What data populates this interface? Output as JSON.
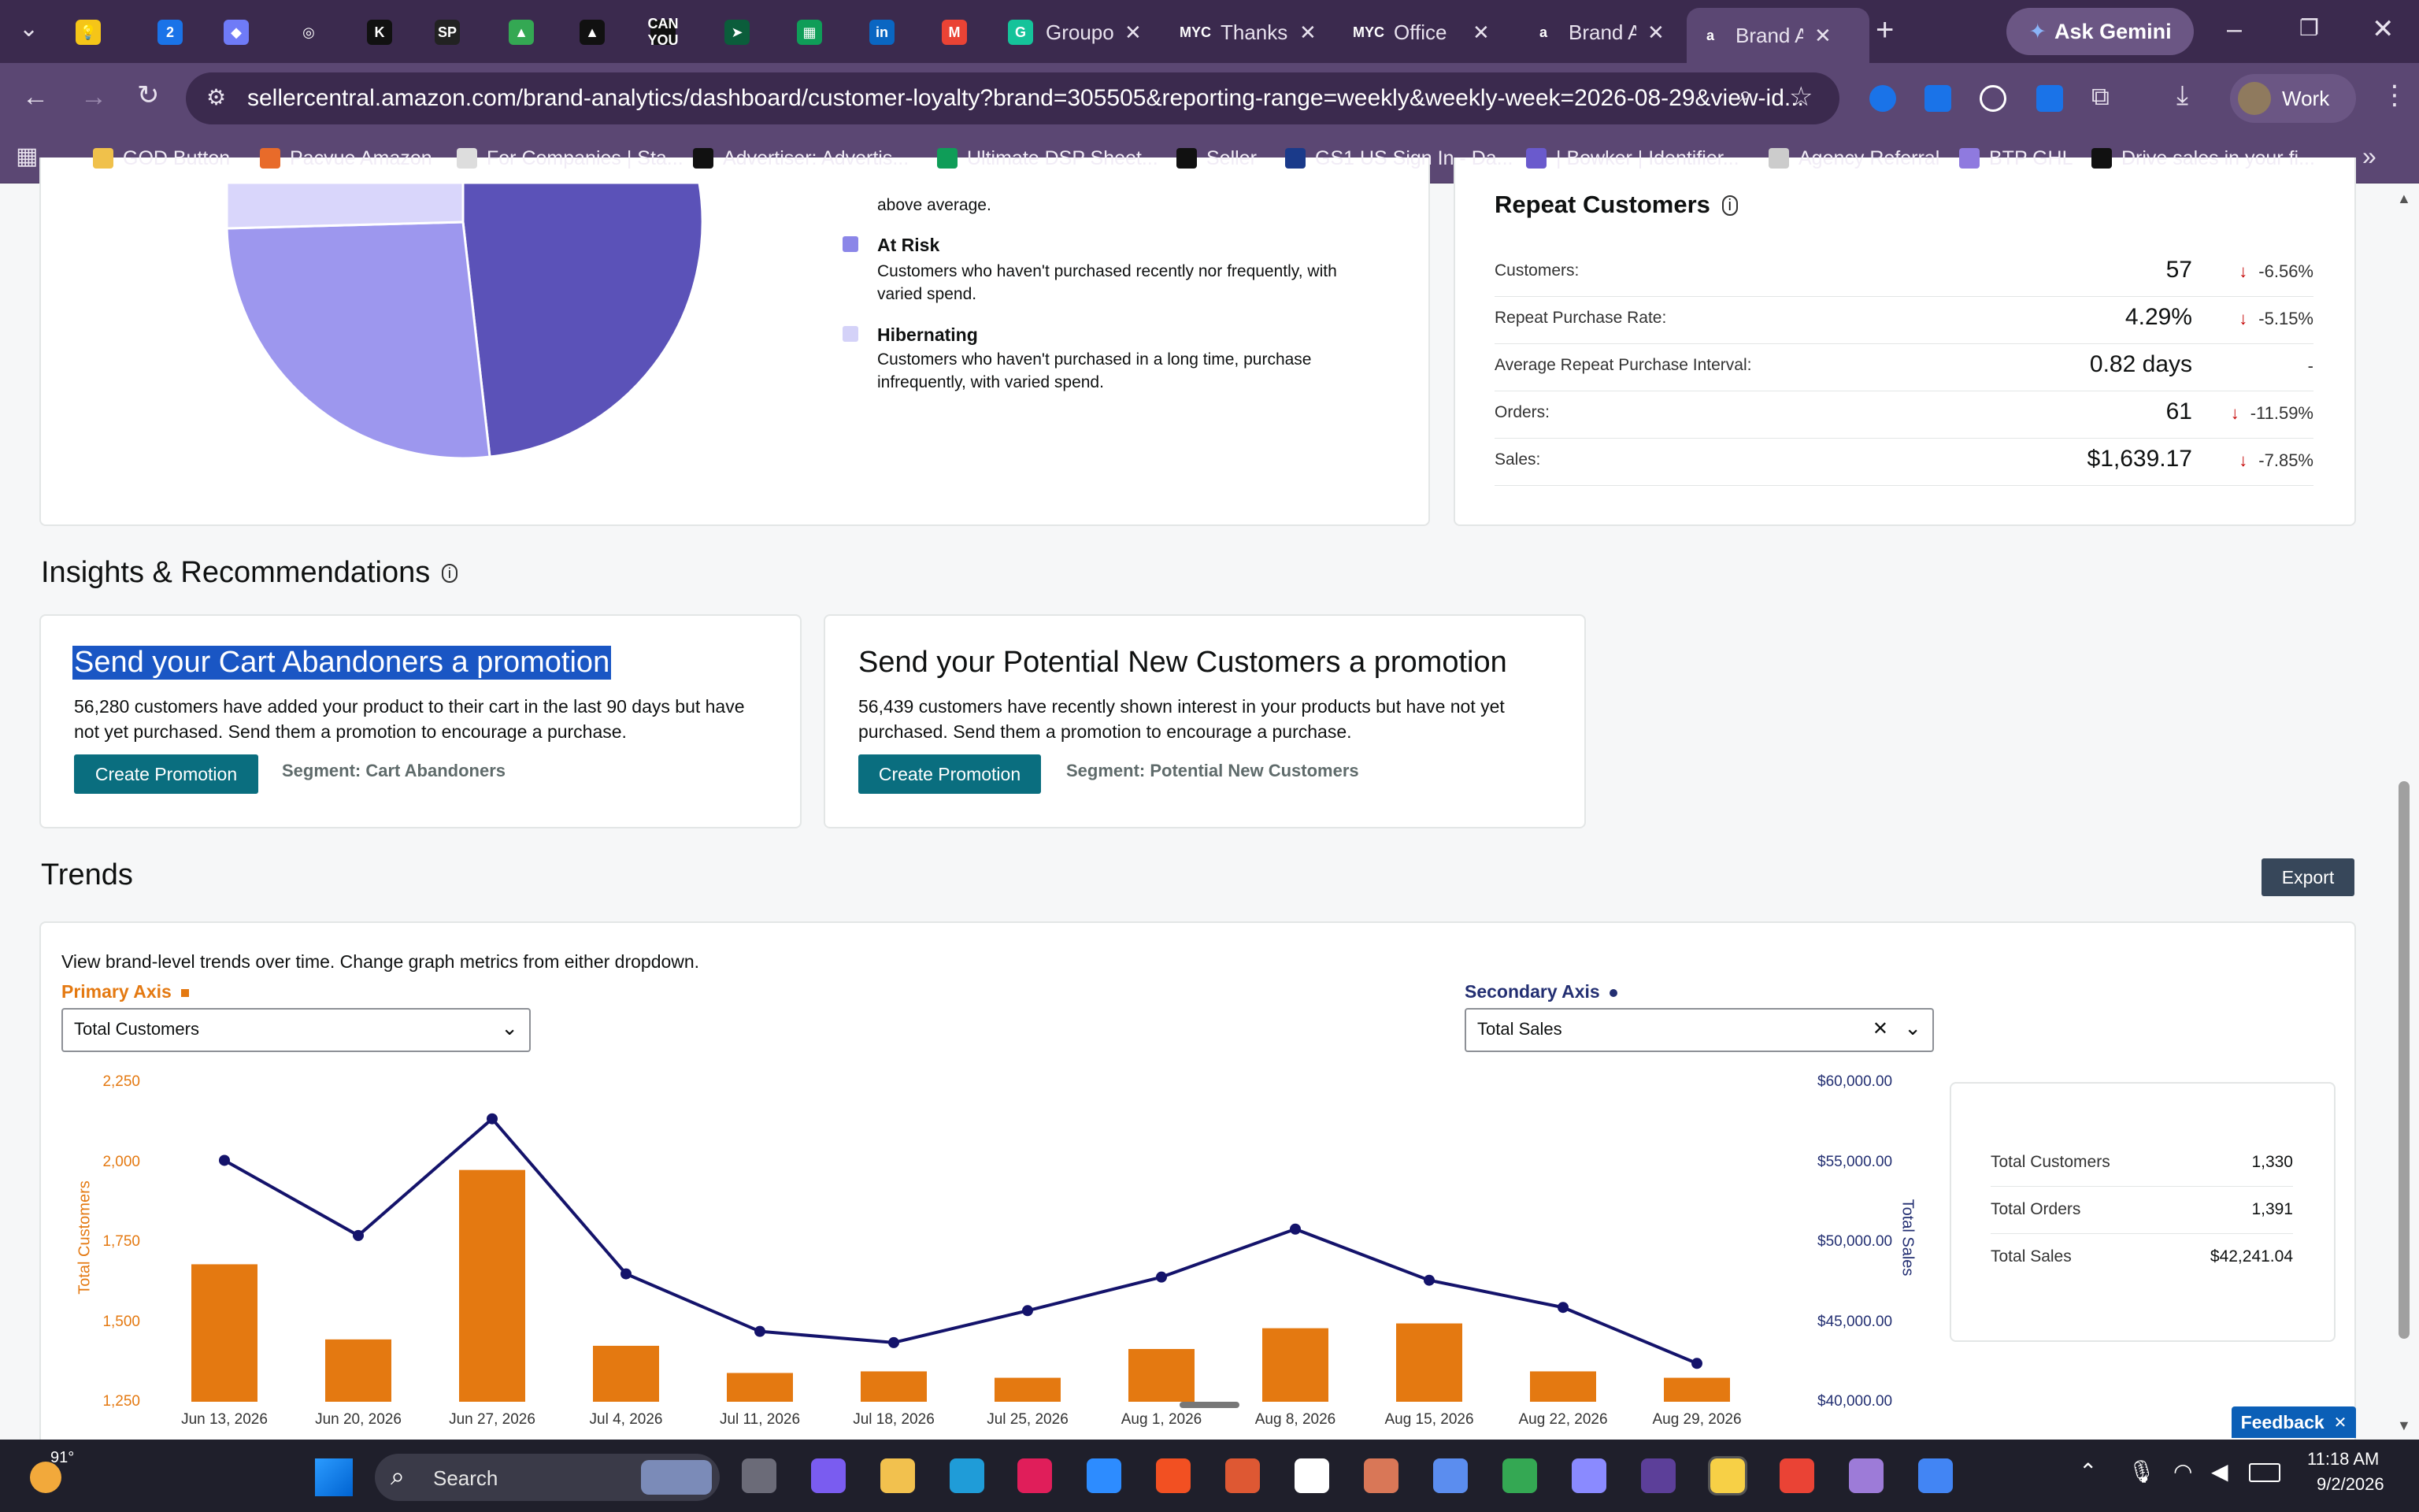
{
  "browser": {
    "tabs": [
      {
        "favicon": "bulb-icon",
        "title": "",
        "color": "#f5c518"
      },
      {
        "favicon": "2",
        "title": "",
        "color": "#1a73e8"
      },
      {
        "favicon": "diamond-icon",
        "title": "",
        "color": "#6f7bf7"
      },
      {
        "favicon": "clickup-icon",
        "title": "",
        "color": "#ffffff"
      },
      {
        "favicon": "K",
        "title": "",
        "color": "#111111"
      },
      {
        "favicon": "SP",
        "title": "",
        "color": "#222222"
      },
      {
        "favicon": "drive-icon",
        "title": "",
        "color": "#34a853"
      },
      {
        "favicon": "triangle-icon",
        "title": "",
        "color": "#111111"
      },
      {
        "favicon": "CAN YOU",
        "title": "",
        "color": "#111111"
      },
      {
        "favicon": "arrow-icon",
        "title": "",
        "color": "#0b5d3b"
      },
      {
        "favicon": "sheet-icon",
        "title": "",
        "color": "#0f9d58"
      },
      {
        "favicon": "in",
        "title": "",
        "color": "#0a66c2"
      },
      {
        "favicon": "M",
        "title": "",
        "color": "#ea4335"
      },
      {
        "favicon": "G",
        "title": "Groupo",
        "color": "#15c39a"
      },
      {
        "favicon": "MYC",
        "title": "Thanks",
        "color": "#ffffff"
      },
      {
        "favicon": "MYC",
        "title": "Office",
        "color": "#ffffff"
      },
      {
        "favicon": "a",
        "title": "Brand A",
        "color": "#ffffff"
      },
      {
        "favicon": "a",
        "title": "Brand A",
        "color": "#ffffff"
      }
    ],
    "new_tab": "+",
    "gemini": "Ask Gemini",
    "url": "sellercentral.amazon.com/brand-analytics/dashboard/customer-loyalty?brand=305505&reporting-range=weekly&weekly-week=2026-08-29&view-id...",
    "profile": "Work",
    "bookmarks": [
      "GOD Button",
      "Pacvue Amazon",
      "For Companies | Sta...",
      "Advertiser: Advertis...",
      "Ultimate DSP Sheet...",
      "Seller",
      "GS1 US Sign In - Da...",
      "| Bowker | Identifier...",
      "Agency Referral",
      "BTP GHL",
      "Drive sales in your fi..."
    ]
  },
  "segments": {
    "partial_desc": "above average.",
    "at_risk": {
      "title": "At Risk",
      "desc1": "Customers who haven't purchased recently nor frequently, with",
      "desc2": "varied spend.",
      "color": "#8b86e8"
    },
    "hibernating": {
      "title": "Hibernating",
      "desc1": "Customers who haven't purchased in a long time, purchase",
      "desc2": "infrequently, with varied spend.",
      "color": "#d4d2f8"
    },
    "pie_colors": [
      "#5b52b8",
      "#9d97ee",
      "#d9d6fb"
    ]
  },
  "repeat": {
    "title": "Repeat Customers",
    "rows": [
      {
        "label": "Customers:",
        "value": "57",
        "delta": "-6.56%"
      },
      {
        "label": "Repeat Purchase Rate:",
        "value": "4.29%",
        "delta": "-5.15%"
      },
      {
        "label": "Average Repeat Purchase Interval:",
        "value": "0.82 days",
        "delta": "-"
      },
      {
        "label": "Orders:",
        "value": "61",
        "delta": "-11.59%"
      },
      {
        "label": "Sales:",
        "value": "$1,639.17",
        "delta": "-7.85%"
      }
    ]
  },
  "insights": {
    "title": "Insights & Recommendations",
    "cards": [
      {
        "title": "Send your Cart Abandoners a promotion",
        "line1": "56,280 customers have added your product to their cart in the last 90 days but have",
        "line2": "not yet purchased. Send them a promotion to encourage a purchase.",
        "button": "Create Promotion",
        "segment": "Segment: Cart Abandoners"
      },
      {
        "title": "Send your Potential New Customers a promotion",
        "line1": "56,439 customers have recently shown interest in your products but have not yet",
        "line2": "purchased. Send them a promotion to encourage a purchase.",
        "button": "Create Promotion",
        "segment": "Segment: Potential New Customers"
      }
    ]
  },
  "trends": {
    "title": "Trends",
    "export": "Export",
    "description": "View brand-level trends over time. Change graph metrics from either dropdown.",
    "primary_label": "Primary Axis",
    "primary_value": "Total Customers",
    "secondary_label": "Secondary Axis",
    "secondary_value": "Total Sales",
    "summary": [
      {
        "label": "Total Customers",
        "value": "1,330"
      },
      {
        "label": "Total Orders",
        "value": "1,391"
      },
      {
        "label": "Total Sales",
        "value": "$42,241.04"
      }
    ],
    "feedback": "Feedback"
  },
  "chart_data": {
    "type": "bar",
    "title": "",
    "categories": [
      "Jun 13, 2026",
      "Jun 20, 2026",
      "Jun 27, 2026",
      "Jul 4, 2026",
      "Jul 11, 2026",
      "Jul 18, 2026",
      "Jul 25, 2026",
      "Aug 1, 2026",
      "Aug 8, 2026",
      "Aug 15, 2026",
      "Aug 22, 2026",
      "Aug 29, 2026"
    ],
    "series": [
      {
        "name": "Total Customers",
        "type": "bar",
        "axis": "left",
        "color": "#e47911",
        "values": [
          1680,
          1445,
          1975,
          1425,
          1340,
          1345,
          1325,
          1415,
          1480,
          1495,
          1345,
          1325
        ]
      },
      {
        "name": "Total Sales",
        "type": "line",
        "axis": "right",
        "color": "#14136b",
        "values": [
          55100,
          50400,
          57700,
          48000,
          44400,
          43700,
          45700,
          47800,
          50800,
          47600,
          45900,
          42400
        ]
      }
    ],
    "xlabel": "",
    "ylabel": "Total Customers",
    "y2label": "Total Sales",
    "ylim": [
      1250,
      2250
    ],
    "y2lim": [
      40000,
      60000
    ],
    "yticks": [
      "1,250",
      "1,500",
      "1,750",
      "2,000",
      "2,250"
    ],
    "y2ticks": [
      "$40,000.00",
      "$45,000.00",
      "$50,000.00",
      "$55,000.00",
      "$60,000.00"
    ],
    "grid": false,
    "legend": "none"
  },
  "taskbar": {
    "weather": "91°",
    "search": "Search",
    "time": "11:18 AM",
    "date": "9/2/2026"
  }
}
